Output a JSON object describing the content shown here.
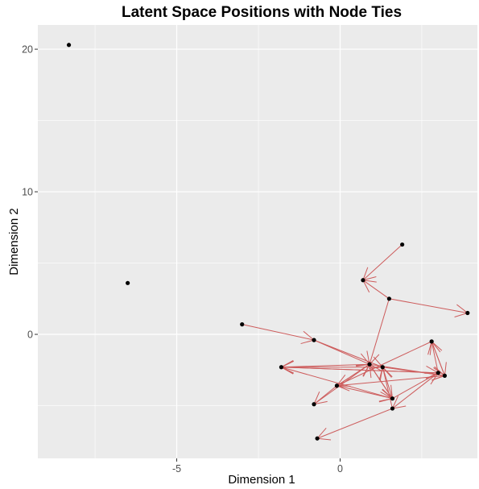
{
  "chart_data": {
    "type": "scatter",
    "title": "Latent Space Positions with Node Ties",
    "xlabel": "Dimension 1",
    "ylabel": "Dimension 2",
    "xlim": [
      -9.25,
      4.2
    ],
    "ylim": [
      -8.7,
      21.7
    ],
    "xticks": [
      -5,
      0
    ],
    "xtick_labels": [
      "-5",
      "0"
    ],
    "yticks": [
      0,
      10,
      20
    ],
    "ytick_labels": [
      "0",
      "10",
      "20"
    ],
    "xminor": [
      -7.5,
      -2.5,
      2.5
    ],
    "yminor": [
      -5,
      5,
      15
    ],
    "grid": true,
    "colors": {
      "panel": "#ebebeb",
      "grid": "#ffffff",
      "point": "#000000",
      "edge": "#cd5c5c"
    },
    "points": [
      {
        "x": -8.3,
        "y": 20.3
      },
      {
        "x": -6.5,
        "y": 3.6
      },
      {
        "x": -3.0,
        "y": 0.7
      },
      {
        "x": -0.8,
        "y": -0.4
      },
      {
        "x": 0.7,
        "y": 3.8
      },
      {
        "x": 1.9,
        "y": 6.3
      },
      {
        "x": 1.5,
        "y": 2.5
      },
      {
        "x": 3.9,
        "y": 1.5
      },
      {
        "x": -1.8,
        "y": -2.3
      },
      {
        "x": 0.9,
        "y": -2.1
      },
      {
        "x": 1.3,
        "y": -2.3
      },
      {
        "x": -0.1,
        "y": -3.6
      },
      {
        "x": 2.8,
        "y": -0.5
      },
      {
        "x": 3.0,
        "y": -2.7
      },
      {
        "x": 3.2,
        "y": -2.9
      },
      {
        "x": 1.6,
        "y": -4.5
      },
      {
        "x": 1.6,
        "y": -5.2
      },
      {
        "x": -0.8,
        "y": -4.9
      },
      {
        "x": -0.7,
        "y": -7.3
      }
    ],
    "edges": [
      {
        "from": [
          1.9,
          6.3
        ],
        "to": [
          0.7,
          3.8
        ]
      },
      {
        "from": [
          1.5,
          2.5
        ],
        "to": [
          0.7,
          3.8
        ]
      },
      {
        "from": [
          1.5,
          2.5
        ],
        "to": [
          3.9,
          1.5
        ]
      },
      {
        "from": [
          1.5,
          2.5
        ],
        "to": [
          0.9,
          -2.1
        ]
      },
      {
        "from": [
          -3.0,
          0.7
        ],
        "to": [
          -0.8,
          -0.4
        ]
      },
      {
        "from": [
          -0.8,
          -0.4
        ],
        "to": [
          1.3,
          -2.3
        ]
      },
      {
        "from": [
          0.9,
          -2.1
        ],
        "to": [
          -1.8,
          -2.3
        ]
      },
      {
        "from": [
          1.3,
          -2.3
        ],
        "to": [
          -1.8,
          -2.3
        ]
      },
      {
        "from": [
          3.0,
          -2.7
        ],
        "to": [
          -1.8,
          -2.3
        ]
      },
      {
        "from": [
          1.6,
          -4.5
        ],
        "to": [
          0.9,
          -2.1
        ]
      },
      {
        "from": [
          -0.1,
          -3.6
        ],
        "to": [
          0.9,
          -2.1
        ]
      },
      {
        "from": [
          -0.1,
          -3.6
        ],
        "to": [
          1.6,
          -4.5
        ]
      },
      {
        "from": [
          -1.8,
          -2.3
        ],
        "to": [
          1.6,
          -4.5
        ]
      },
      {
        "from": [
          -0.8,
          -4.9
        ],
        "to": [
          0.9,
          -2.1
        ]
      },
      {
        "from": [
          3.2,
          -2.9
        ],
        "to": [
          -0.1,
          -3.6
        ]
      },
      {
        "from": [
          2.8,
          -0.5
        ],
        "to": [
          -0.1,
          -3.6
        ]
      },
      {
        "from": [
          1.6,
          -5.2
        ],
        "to": [
          -0.7,
          -7.3
        ]
      },
      {
        "from": [
          1.6,
          -4.5
        ],
        "to": [
          3.0,
          -2.7
        ]
      },
      {
        "from": [
          0.9,
          -2.1
        ],
        "to": [
          3.2,
          -2.9
        ]
      },
      {
        "from": [
          1.3,
          -2.3
        ],
        "to": [
          3.2,
          -2.9
        ]
      },
      {
        "from": [
          -1.8,
          -2.3
        ],
        "to": [
          3.0,
          -2.7
        ]
      },
      {
        "from": [
          3.0,
          -2.7
        ],
        "to": [
          2.8,
          -0.5
        ]
      },
      {
        "from": [
          3.2,
          -2.9
        ],
        "to": [
          2.8,
          -0.5
        ]
      },
      {
        "from": [
          2.8,
          -0.5
        ],
        "to": [
          3.2,
          -2.9
        ]
      },
      {
        "from": [
          3.0,
          -2.7
        ],
        "to": [
          1.6,
          -5.2
        ]
      },
      {
        "from": [
          1.6,
          -5.2
        ],
        "to": [
          1.3,
          -2.3
        ]
      },
      {
        "from": [
          0.9,
          -2.1
        ],
        "to": [
          1.6,
          -4.5
        ]
      },
      {
        "from": [
          -0.8,
          -0.4
        ],
        "to": [
          0.9,
          -2.1
        ]
      },
      {
        "from": [
          1.6,
          -4.5
        ],
        "to": [
          1.3,
          -2.3
        ]
      },
      {
        "from": [
          -0.1,
          -3.6
        ],
        "to": [
          -0.8,
          -4.9
        ]
      }
    ]
  }
}
